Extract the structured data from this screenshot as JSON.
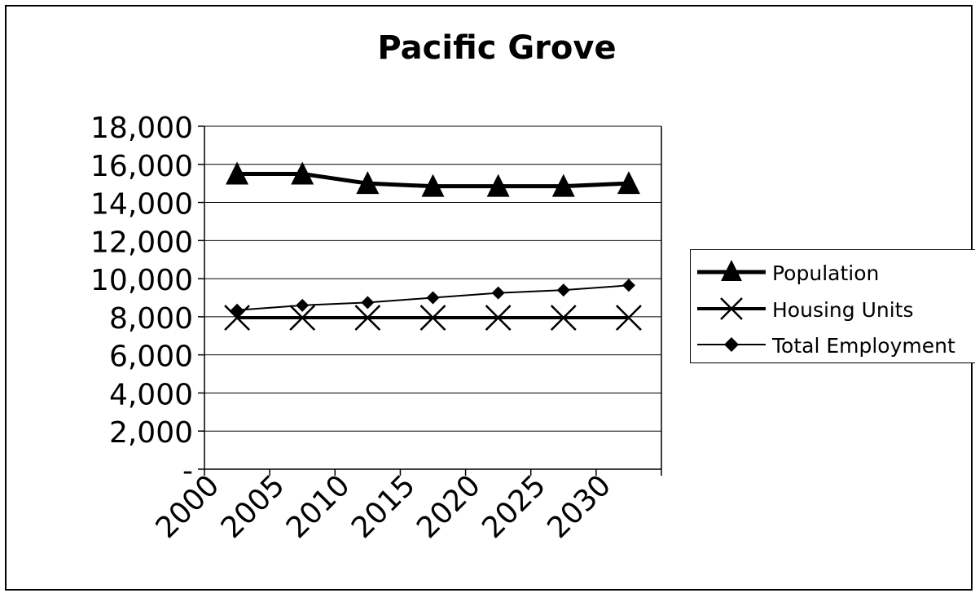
{
  "chart_data": {
    "type": "line",
    "title": "Pacific Grove",
    "xlabel": "",
    "ylabel": "",
    "categories": [
      "2000",
      "2005",
      "2010",
      "2015",
      "2020",
      "2025",
      "2030"
    ],
    "y_tick_labels": [
      "-",
      "2,000",
      "4,000",
      "6,000",
      "8,000",
      "10,000",
      "12,000",
      "14,000",
      "16,000",
      "18,000"
    ],
    "ylim": [
      0,
      18000
    ],
    "grid": true,
    "legend_position": "right",
    "series": [
      {
        "name": "Population",
        "values": [
          15500,
          15500,
          15000,
          14850,
          14850,
          14850,
          15000
        ],
        "marker": "triangle",
        "color": "#000000"
      },
      {
        "name": "Housing Units",
        "values": [
          7950,
          7950,
          7950,
          7950,
          7950,
          7950,
          7950
        ],
        "marker": "x",
        "color": "#000000"
      },
      {
        "name": "Total Employment",
        "values": [
          8350,
          8600,
          8750,
          9000,
          9250,
          9400,
          9650
        ],
        "marker": "diamond",
        "color": "#000000"
      }
    ]
  }
}
